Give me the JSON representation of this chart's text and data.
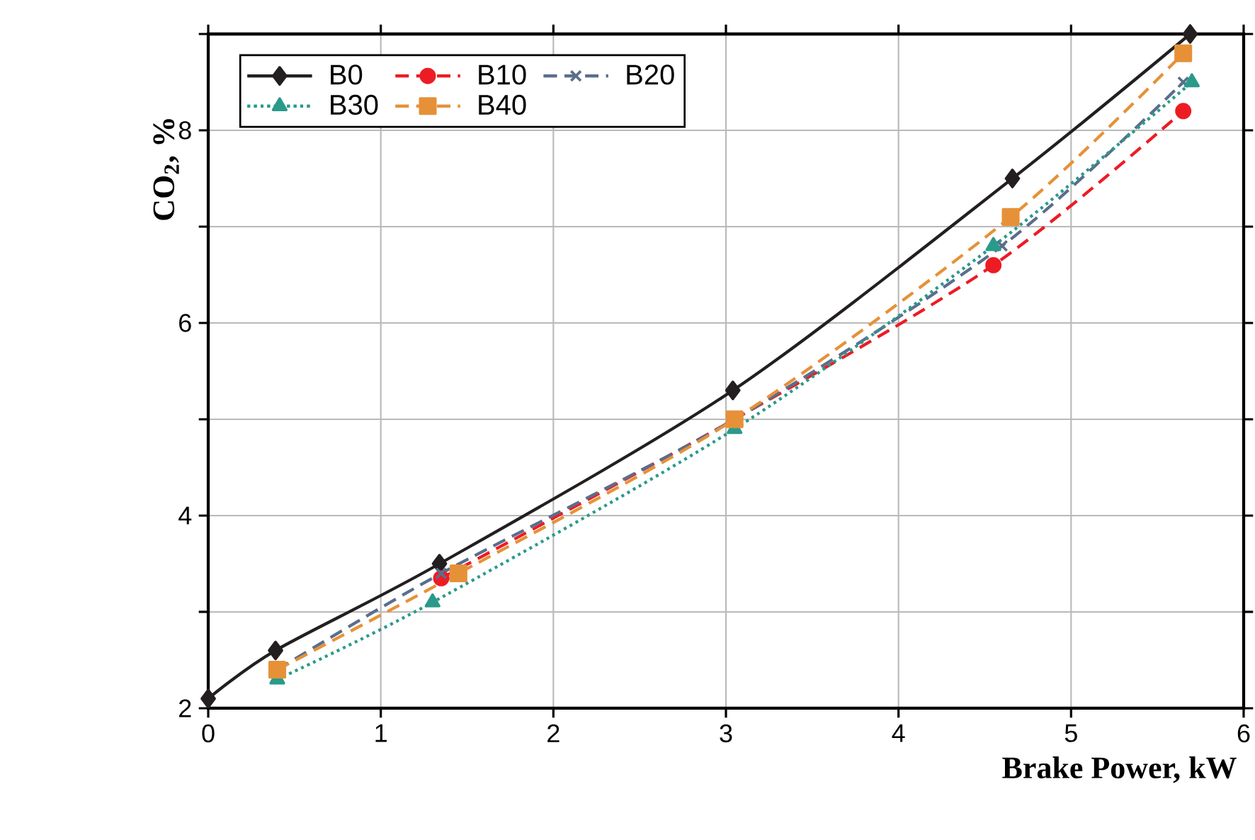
{
  "chart_data": {
    "type": "line",
    "xlabel": "Brake Power, kW",
    "ylabel": "CO$_{2}$, %",
    "xlim": [
      0,
      6
    ],
    "ylim": [
      2,
      9
    ],
    "xticks": [
      0,
      1,
      2,
      3,
      4,
      5,
      6
    ],
    "yticks": [
      2,
      {
        "value": 3,
        "label": null
      },
      4,
      {
        "value": 5,
        "label": null
      },
      6,
      {
        "value": 7,
        "label": null
      },
      8,
      {
        "value": 9,
        "label": null
      }
    ],
    "grid": true,
    "legend": "top left",
    "series": [
      {
        "name": "B0",
        "color": "#231f20",
        "marker": "diamond",
        "line_style": "solid",
        "x": [
          0,
          0.39,
          1.34,
          3.04,
          4.66,
          5.69
        ],
        "values": [
          2.1,
          2.6,
          3.5,
          5.3,
          7.5,
          9.0
        ]
      },
      {
        "name": "B10",
        "color": "#ed1c24",
        "marker": "circle",
        "line_style": "dashed",
        "x": [
          1.35,
          3.05,
          4.55,
          5.65
        ],
        "values": [
          3.35,
          5.0,
          6.6,
          8.2
        ]
      },
      {
        "name": "B20",
        "color": "#5a6e8c",
        "marker": "cross",
        "line_style": "dashed",
        "x": [
          0.4,
          1.35,
          3.05,
          4.6,
          5.65
        ],
        "values": [
          2.4,
          3.4,
          5.0,
          6.8,
          8.5
        ]
      },
      {
        "name": "B30",
        "color": "#2a9a8a",
        "marker": "triangle",
        "line_style": "dotted",
        "x": [
          0.4,
          1.3,
          3.05,
          4.55,
          5.7
        ],
        "values": [
          2.3,
          3.1,
          4.9,
          6.8,
          8.5
        ]
      },
      {
        "name": "B40",
        "color": "#e69138",
        "marker": "square",
        "line_style": "dashed",
        "x": [
          0.4,
          1.45,
          3.05,
          4.65,
          5.65
        ],
        "values": [
          2.4,
          3.4,
          5.0,
          7.1,
          8.8
        ]
      }
    ]
  }
}
